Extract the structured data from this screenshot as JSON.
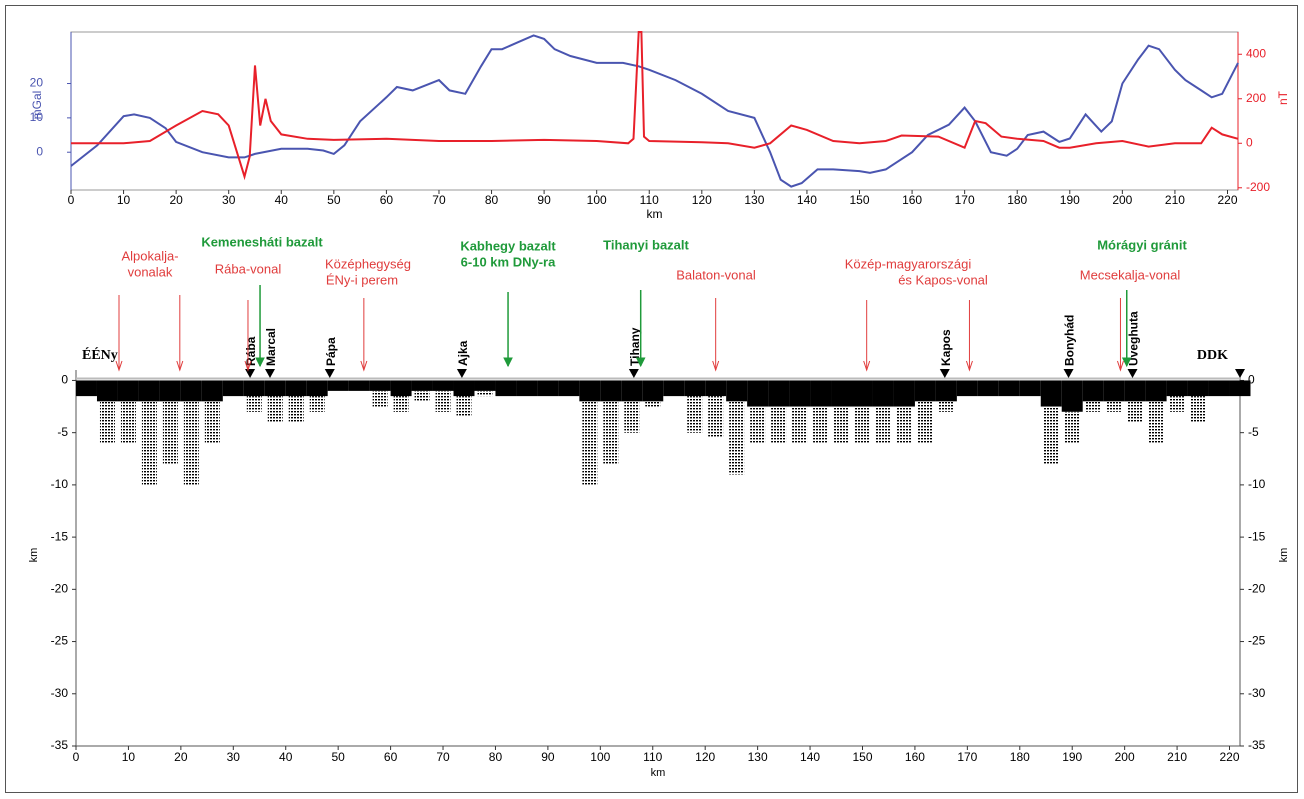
{
  "chart_data": [
    {
      "type": "line",
      "xlabel": "km",
      "ylabel": "mGal",
      "y2label": "nT",
      "xlim": [
        0,
        222
      ],
      "xticks": [
        0,
        10,
        20,
        30,
        40,
        50,
        60,
        70,
        80,
        90,
        100,
        110,
        120,
        130,
        140,
        150,
        160,
        170,
        180,
        190,
        200,
        210,
        220
      ],
      "ylim": [
        -11,
        35
      ],
      "yticks": [
        0,
        10,
        20
      ],
      "y2lim": [
        -210,
        500
      ],
      "y2ticks": [
        -200,
        0,
        200,
        400
      ],
      "x": [
        0,
        5,
        10,
        12,
        15,
        18,
        20,
        25,
        30,
        33,
        35,
        40,
        45,
        48,
        50,
        52,
        55,
        60,
        62,
        65,
        70,
        72,
        75,
        78,
        80,
        82,
        85,
        88,
        90,
        92,
        95,
        100,
        105,
        108,
        110,
        115,
        120,
        125,
        130,
        133,
        135,
        137,
        139,
        142,
        145,
        150,
        152,
        155,
        160,
        163,
        167,
        170,
        172,
        175,
        178,
        180,
        182,
        185,
        188,
        190,
        193,
        196,
        198,
        200,
        203,
        205,
        207,
        210,
        212,
        215,
        217,
        219,
        222
      ],
      "series": [
        {
          "color": "#4a55b0",
          "values": [
            -4,
            2,
            10.5,
            11,
            10,
            7,
            3,
            0,
            -1.5,
            -1.5,
            -0.5,
            1,
            1,
            0.5,
            -0.5,
            2,
            9,
            16,
            19,
            18,
            21,
            18,
            17,
            25,
            30,
            30,
            32,
            34,
            33,
            30,
            28,
            26,
            26,
            25,
            24,
            21,
            17,
            12,
            10,
            0,
            -8,
            -10,
            -9,
            -5,
            -5,
            -5.5,
            -6,
            -5,
            0,
            5,
            8,
            13,
            9,
            0,
            -1,
            1,
            5,
            6,
            3,
            4,
            11,
            6,
            9,
            20,
            27,
            31,
            30,
            24,
            21,
            18,
            16,
            17,
            26
          ]
        },
        {
          "color": "#e8202a",
          "axis": "y2",
          "x": [
            0,
            10,
            15,
            20,
            25,
            28,
            30,
            33,
            34,
            35,
            36,
            37,
            38,
            40,
            45,
            50,
            60,
            70,
            80,
            90,
            100,
            106,
            107,
            108,
            108.5,
            109,
            110,
            120,
            125,
            130,
            133,
            137,
            140,
            145,
            150,
            155,
            158,
            165,
            170,
            172,
            174,
            177,
            180,
            185,
            188,
            190,
            195,
            200,
            205,
            210,
            215,
            217,
            219,
            222
          ],
          "values": [
            0,
            0,
            10,
            80,
            145,
            130,
            80,
            -150,
            -60,
            350,
            80,
            200,
            100,
            40,
            20,
            15,
            20,
            10,
            10,
            15,
            10,
            0,
            20,
            500,
            500,
            30,
            10,
            5,
            0,
            -20,
            0,
            80,
            60,
            10,
            0,
            10,
            35,
            30,
            -20,
            100,
            90,
            30,
            20,
            10,
            -20,
            -20,
            0,
            10,
            -15,
            0,
            0,
            70,
            40,
            20
          ]
        }
      ]
    },
    {
      "type": "section",
      "xlabel": "km",
      "ylabel": "km",
      "xlim": [
        0,
        222
      ],
      "xticks": [
        0,
        10,
        20,
        30,
        40,
        50,
        60,
        70,
        80,
        90,
        100,
        110,
        120,
        130,
        140,
        150,
        160,
        170,
        180,
        190,
        200,
        210,
        220
      ],
      "ylim": [
        -35,
        1
      ],
      "yticks": [
        0,
        -5,
        -10,
        -15,
        -20,
        -25,
        -30,
        -35
      ],
      "x": [
        2,
        6,
        10,
        14,
        18,
        22,
        26,
        30,
        34,
        38,
        42,
        46,
        50,
        54,
        58,
        62,
        66,
        70,
        74,
        78,
        82,
        86,
        90,
        94,
        98,
        102,
        106,
        110,
        114,
        118,
        122,
        126,
        130,
        134,
        138,
        142,
        146,
        150,
        154,
        158,
        162,
        166,
        170,
        174,
        178,
        182,
        186,
        190,
        194,
        198,
        202,
        206,
        210,
        214,
        218,
        222
      ],
      "series": [
        {
          "color": "#000000",
          "values": [
            -1.5,
            -2,
            -2,
            -2,
            -2,
            -2,
            -2,
            -1.5,
            -1.5,
            -1.5,
            -1.5,
            -1.5,
            -1,
            -1,
            -1,
            -1.5,
            -1,
            -1,
            -1.5,
            -1,
            -1.5,
            -1.5,
            -1.5,
            -1.5,
            -2,
            -2,
            -2,
            -2,
            -1.5,
            -1.5,
            -1.5,
            -2,
            -2.5,
            -2.5,
            -2.5,
            -2.5,
            -2.5,
            -2.5,
            -2.5,
            -2.5,
            -2,
            -2,
            -1.5,
            -1.5,
            -1.5,
            -1.5,
            -2.5,
            -3,
            -2,
            -2,
            -2,
            -2,
            -1.5,
            -1.5,
            -1.5,
            -1.5
          ]
        },
        {
          "color": "#000000",
          "values": [
            -1.5,
            -6,
            -6,
            -10,
            -8,
            -10,
            -6,
            -1.5,
            -3,
            -4,
            -4,
            -3,
            -1,
            -1,
            -2.5,
            -3,
            -2,
            -3,
            -3.5,
            -1.5,
            -1.5,
            -1.5,
            -1.5,
            -1.5,
            -10,
            -8,
            -5,
            -2.5,
            -1.5,
            -5,
            -5.5,
            -9,
            -6,
            -6,
            -6,
            -6,
            -6,
            -6,
            -6,
            -6,
            -6,
            -3,
            -1.5,
            -1.5,
            -1.5,
            -1.5,
            -8,
            -6,
            -3,
            -3,
            -4,
            -6,
            -3,
            -4,
            -1.5,
            -1.5
          ]
        }
      ],
      "end_labels": [
        "ÉÉNy",
        "DDK"
      ],
      "annotations": [
        {
          "lines": [
            "Alpokalja-",
            "vonalak"
          ],
          "x": [
            8.2,
            19.8
          ],
          "color": "#e03c3c"
        },
        {
          "lines": [
            "Kemenesháti bazalt"
          ],
          "x": [
            35.1
          ],
          "color": "#1f9a3a",
          "bold": true
        },
        {
          "lines": [
            "Rába-vonal"
          ],
          "x": [
            32.8
          ],
          "color": "#e03c3c"
        },
        {
          "lines": [
            "Középhegység",
            "ÉNy-i perem"
          ],
          "x": [
            54.9
          ],
          "color": "#e03c3c"
        },
        {
          "lines": [
            "Kabhegy bazalt",
            "6-10 km DNy-ra"
          ],
          "x": [
            82.4
          ],
          "color": "#1f9a3a",
          "bold": true
        },
        {
          "lines": [
            "Tihanyi bazalt"
          ],
          "x": [
            107.7
          ],
          "color": "#1f9a3a",
          "bold": true
        },
        {
          "lines": [
            "Balaton-vonal"
          ],
          "x": [
            122
          ],
          "color": "#e03c3c"
        },
        {
          "lines": [
            "Közép-magyarországi",
            "és Kapos-vonal"
          ],
          "x": [
            150.8,
            170.4
          ],
          "color": "#e03c3c"
        },
        {
          "lines": [
            "Mórágyi gránit"
          ],
          "x": [
            200.4
          ],
          "color": "#1f9a3a",
          "bold": true
        },
        {
          "lines": [
            "Mecsekalja-vonal"
          ],
          "x": [
            199.2
          ],
          "color": "#e03c3c"
        }
      ],
      "stations": [
        {
          "name": "Rába",
          "x": 33.2
        },
        {
          "name": "Marcal",
          "x": 37
        },
        {
          "name": "Pápa",
          "x": 48.4
        },
        {
          "name": "Ajka",
          "x": 73.6
        },
        {
          "name": "Tihany",
          "x": 106.4
        },
        {
          "name": "Kapos",
          "x": 165.7
        },
        {
          "name": "Bonyhád",
          "x": 189.3
        },
        {
          "name": "Üveghuta",
          "x": 201.5
        }
      ]
    }
  ]
}
